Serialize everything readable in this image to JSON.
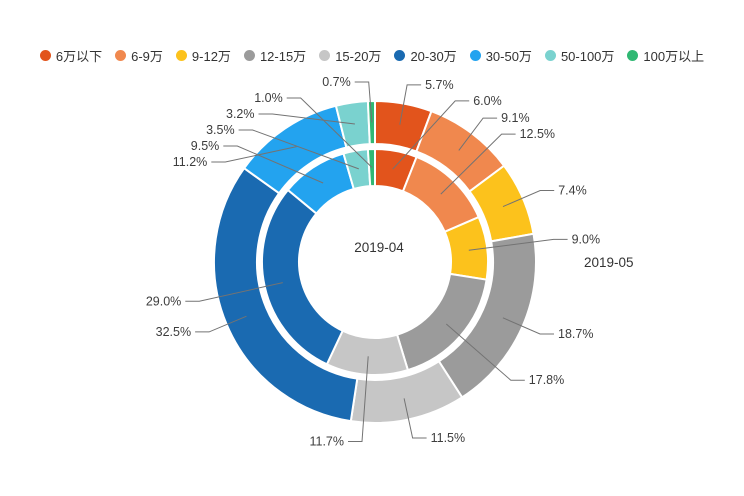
{
  "chart_data": {
    "type": "pie",
    "subtype": "nested_donut",
    "title": "",
    "categories": [
      "6万以下",
      "6-9万",
      "9-12万",
      "12-15万",
      "15-20万",
      "20-30万",
      "30-50万",
      "50-100万",
      "100万以上"
    ],
    "colors": [
      "#e2541c",
      "#f0884e",
      "#fcc21c",
      "#9b9b9b",
      "#c6c6c6",
      "#1a6ab1",
      "#23a3ef",
      "#7ad2cf",
      "#30b873"
    ],
    "series": [
      {
        "name": "2019-04",
        "ring": "inner",
        "values": [
          6.0,
          12.5,
          9.0,
          17.8,
          11.7,
          29.0,
          9.5,
          3.5,
          1.0
        ]
      },
      {
        "name": "2019-05",
        "ring": "outer",
        "values": [
          5.7,
          9.1,
          7.4,
          18.7,
          11.5,
          32.5,
          11.2,
          3.2,
          0.7
        ]
      }
    ],
    "value_suffix": "%",
    "start_angle_deg": -90,
    "direction": "clockwise",
    "legend_position": "top"
  }
}
